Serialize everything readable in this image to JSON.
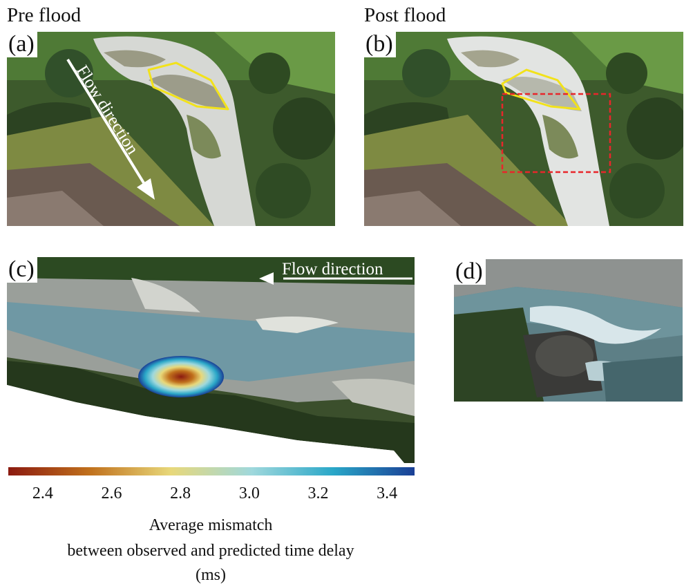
{
  "headings": {
    "pre": "Pre flood",
    "post": "Post flood"
  },
  "panels": {
    "a": {
      "label": "(a)",
      "annotation": "Flow direction"
    },
    "b": {
      "label": "(b)"
    },
    "c": {
      "label": "(c)",
      "annotation": "Flow direction"
    },
    "d": {
      "label": "(d)"
    }
  },
  "colorbar": {
    "ticks": [
      "2.4",
      "2.6",
      "2.8",
      "3.0",
      "3.2",
      "3.4"
    ],
    "tick_values": [
      2.4,
      2.6,
      2.8,
      3.0,
      3.2,
      3.4
    ],
    "range": [
      2.3,
      3.48
    ],
    "colors": [
      "#8b1a10",
      "#c0701c",
      "#e8d87a",
      "#9fd8dc",
      "#2aa7c8",
      "#1a3f95"
    ],
    "title_line1": "Average mismatch",
    "title_line2": "between observed and predicted time delay",
    "unit": "(ms)"
  },
  "colors": {
    "outline": "#f2e21a",
    "box": "#e8262a",
    "arrow": "#ffffff"
  }
}
